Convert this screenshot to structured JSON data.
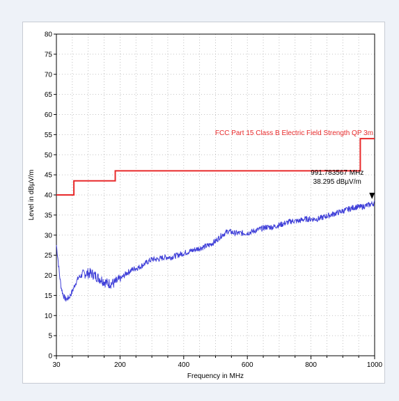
{
  "chart_data": {
    "type": "line",
    "title": "",
    "xlabel": "Frequency in MHz",
    "ylabel": "Level in dBµV/m",
    "xlim": [
      0,
      1000
    ],
    "ylim": [
      0,
      80
    ],
    "x_ticks": [
      {
        "label": "30",
        "value": 30
      },
      {
        "label": "200",
        "value": 200
      },
      {
        "label": "400",
        "value": 400
      },
      {
        "label": "600",
        "value": 600
      },
      {
        "label": "800",
        "value": 800
      },
      {
        "label": "1000",
        "value": 1000
      }
    ],
    "y_ticks": [
      0,
      5,
      10,
      15,
      20,
      25,
      30,
      35,
      40,
      45,
      50,
      55,
      60,
      65,
      70,
      75,
      80
    ],
    "grid": true,
    "colors": {
      "measurement": "#3f3fd8",
      "limit": "#e8292a",
      "grid": "#b0b0b0",
      "marker": "#000000"
    },
    "limit_line": {
      "label": "FCC Part 15 Class B Electric Field Strength QP 3m",
      "x": [
        0,
        55,
        55,
        185,
        185,
        955,
        955,
        1000
      ],
      "y": [
        40,
        40,
        43.5,
        43.5,
        46,
        46,
        54,
        54
      ]
    },
    "measurement": {
      "x": [
        0,
        5,
        10,
        15,
        20,
        25,
        30,
        40,
        50,
        60,
        70,
        80,
        90,
        100,
        110,
        120,
        130,
        140,
        150,
        160,
        170,
        180,
        190,
        200,
        220,
        240,
        260,
        280,
        300,
        320,
        340,
        360,
        380,
        400,
        420,
        440,
        460,
        480,
        500,
        520,
        540,
        560,
        580,
        600,
        620,
        640,
        660,
        680,
        700,
        720,
        740,
        760,
        780,
        800,
        820,
        840,
        860,
        880,
        900,
        920,
        940,
        960,
        980,
        1000
      ],
      "y": [
        27.5,
        24,
        20,
        17,
        15.5,
        14.5,
        14,
        14.5,
        16,
        18,
        19.5,
        20,
        20.5,
        20.5,
        20.5,
        20,
        19.5,
        19,
        18.5,
        18,
        18,
        18,
        18.5,
        19,
        20.5,
        21.5,
        22,
        23,
        24,
        24,
        24.5,
        24.5,
        25,
        25.5,
        26,
        26.5,
        27,
        27.5,
        28.5,
        30,
        31,
        30.5,
        30.5,
        30.5,
        31,
        31.5,
        32,
        32,
        32.5,
        33,
        33.5,
        33.5,
        34,
        34,
        34,
        34.5,
        35,
        35.5,
        36,
        36.5,
        37,
        37,
        37.5,
        38
      ]
    },
    "marker": {
      "x": 991.783567,
      "y": 38.295,
      "label_freq": "991.783567 MHz",
      "label_level": "38.295 dBµV/m"
    }
  }
}
